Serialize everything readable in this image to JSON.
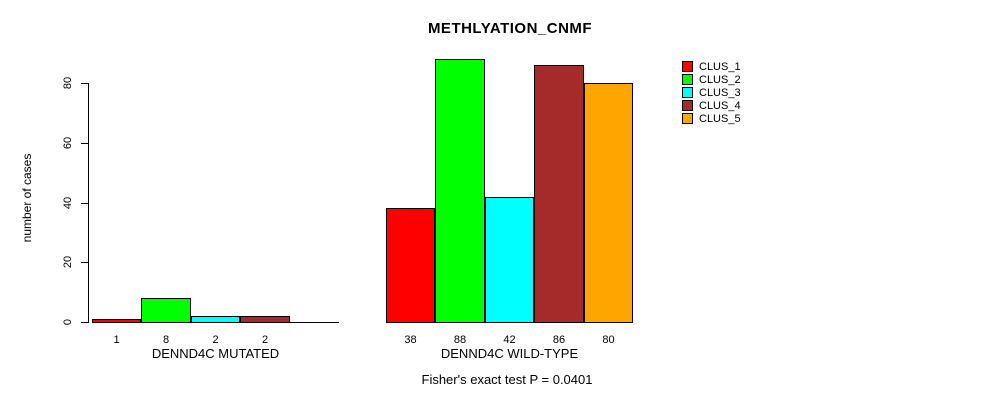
{
  "title": "METHLYATION_CNMF",
  "subtitle": "Fisher's exact test P = 0.0401",
  "y_axis": {
    "label": "number of cases",
    "ticks": [
      0,
      20,
      40,
      60,
      80
    ]
  },
  "legend": {
    "entries": [
      {
        "label": "CLUS_1",
        "color": "#FF0000"
      },
      {
        "label": "CLUS_2",
        "color": "#00FF00"
      },
      {
        "label": "CLUS_3",
        "color": "#00FFFF"
      },
      {
        "label": "CLUS_4",
        "color": "#A52A2A"
      },
      {
        "label": "CLUS_5",
        "color": "#FFA500"
      }
    ]
  },
  "chart_data": {
    "type": "bar",
    "title": "METHLYATION_CNMF",
    "xlabel": "",
    "ylabel": "number of cases",
    "ylim": [
      0,
      88
    ],
    "yticks": [
      0,
      20,
      40,
      60,
      80
    ],
    "grid": false,
    "legend_position": "right-of-plot",
    "categories": [
      "DENND4C MUTATED",
      "DENND4C WILD-TYPE"
    ],
    "series": [
      {
        "name": "CLUS_1",
        "color": "#FF0000",
        "values": [
          1,
          38
        ]
      },
      {
        "name": "CLUS_2",
        "color": "#00FF00",
        "values": [
          8,
          88
        ]
      },
      {
        "name": "CLUS_3",
        "color": "#00FFFF",
        "values": [
          2,
          42
        ]
      },
      {
        "name": "CLUS_4",
        "color": "#A52A2A",
        "values": [
          2,
          86
        ]
      },
      {
        "name": "CLUS_5",
        "color": "#FFA500",
        "values": [
          0,
          80
        ]
      }
    ],
    "bar_value_labels_shown": true,
    "annotation": "Fisher's exact test P = 0.0401"
  }
}
